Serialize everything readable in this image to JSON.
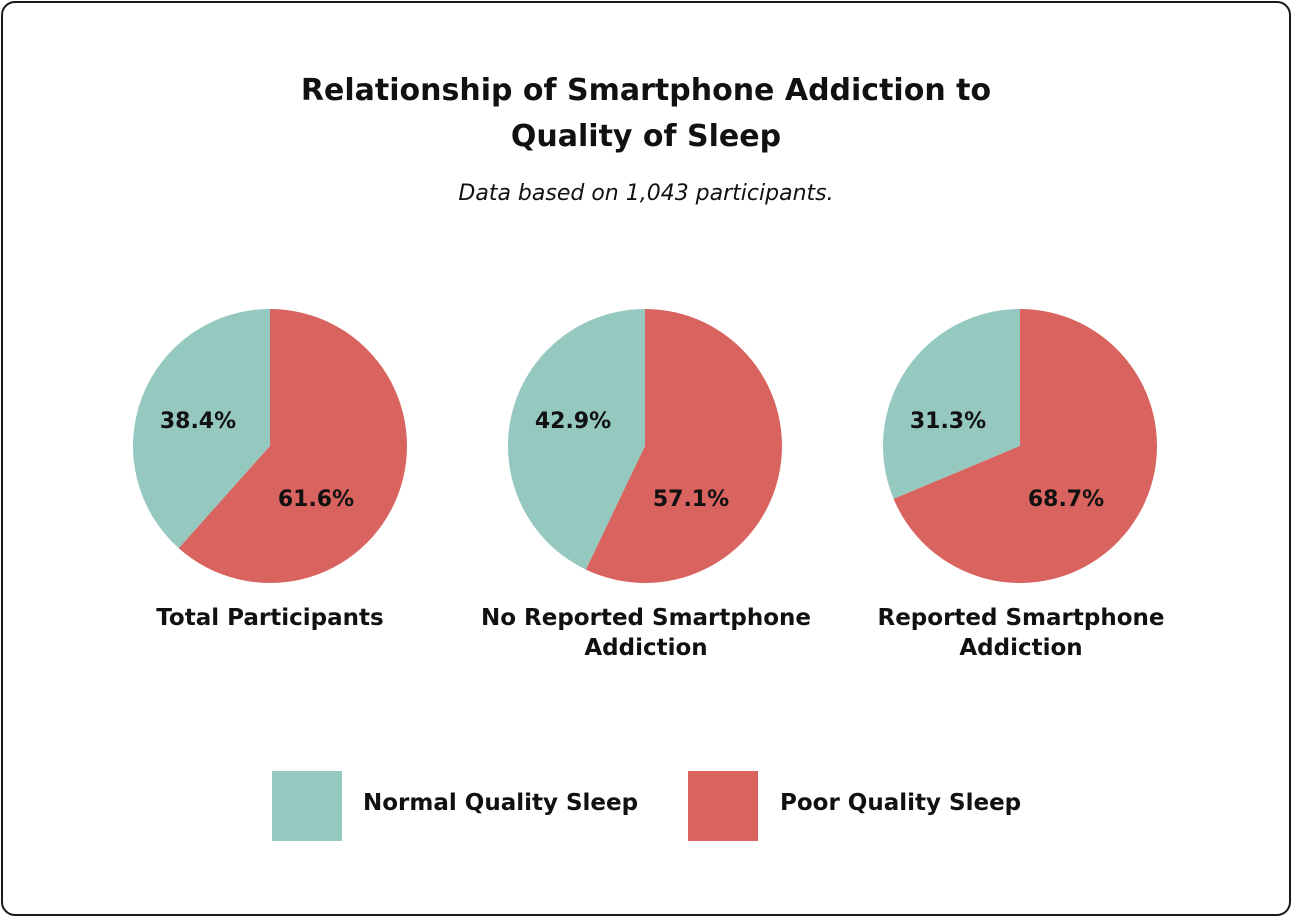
{
  "chart_data": {
    "type": "pie",
    "title_lines": [
      "Relationship of Smartphone Addiction to",
      "Quality of Sleep"
    ],
    "subtitle": "Data based on 1,043 participants.",
    "series_names": [
      "Normal Quality Sleep",
      "Poor Quality Sleep"
    ],
    "colors": [
      "#95c8bf",
      "#d9635e"
    ],
    "pies": [
      {
        "label": "Total Participants",
        "values": [
          38.4,
          61.6
        ],
        "value_labels": [
          "38.4%",
          "61.6%"
        ]
      },
      {
        "label": "No Reported Smartphone Addiction",
        "values": [
          42.9,
          57.1
        ],
        "value_labels": [
          "42.9%",
          "57.1%"
        ]
      },
      {
        "label": "Reported Smartphone Addiction",
        "values": [
          31.3,
          68.7
        ],
        "value_labels": [
          "31.3%",
          "68.7%"
        ]
      }
    ],
    "legend": [
      {
        "label": "Normal Quality Sleep",
        "color": "#95c8bf"
      },
      {
        "label": "Poor Quality Sleep",
        "color": "#d9635e"
      }
    ]
  }
}
